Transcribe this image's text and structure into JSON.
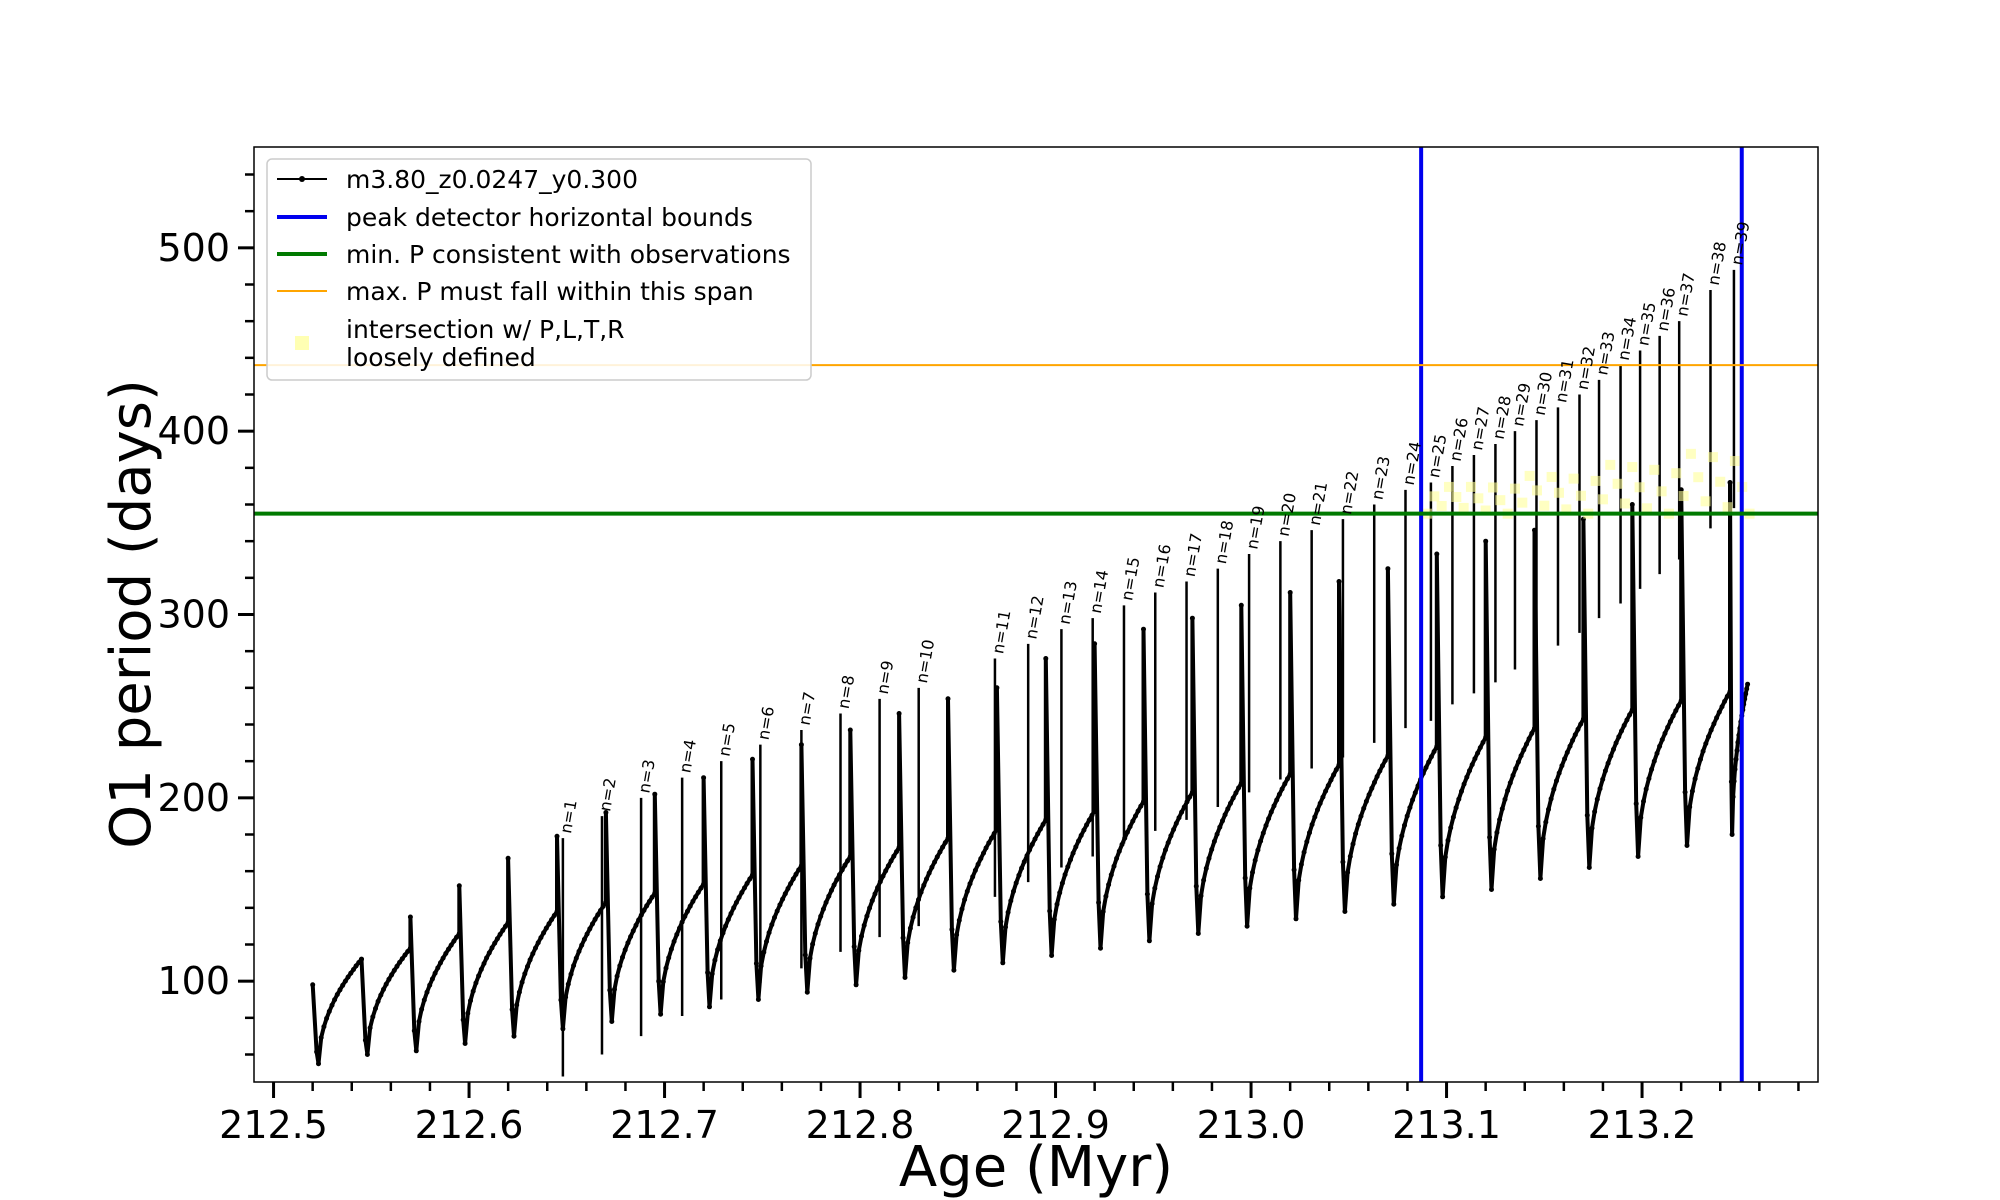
{
  "chart_data": {
    "type": "line",
    "xlabel": "Age (Myr)",
    "ylabel": "O1 period (days)",
    "xlim": [
      212.49,
      213.29
    ],
    "ylim": [
      45,
      555
    ],
    "x_major_ticks": [
      212.5,
      212.6,
      212.7,
      212.8,
      212.9,
      213.0,
      213.1,
      213.2
    ],
    "x_tick_labels": [
      "212.5",
      "212.6",
      "212.7",
      "212.8",
      "212.9",
      "213.0",
      "213.1",
      "213.2"
    ],
    "y_major_ticks": [
      100,
      200,
      300,
      400,
      500
    ],
    "y_tick_labels": [
      "100",
      "200",
      "300",
      "400",
      "500"
    ],
    "grid": false,
    "legend_position": "upper-left",
    "series": [
      {
        "name": "m3.80_z0.0247_y0.300",
        "color": "#000000",
        "style": "line-with-point-markers",
        "description": "pulsation cycles: each cycle starts at a peak, drops to a minimum, then recovers along a concave curve",
        "cycle_start_age": [
          212.52,
          212.545,
          212.57,
          212.595,
          212.62,
          212.645,
          212.67,
          212.695,
          212.72,
          212.745,
          212.77,
          212.795,
          212.82,
          212.845,
          212.87,
          212.895,
          212.92,
          212.945,
          212.97,
          212.995,
          213.02,
          213.045,
          213.07,
          213.095,
          213.12,
          213.145,
          213.17,
          213.195,
          213.22,
          213.245
        ],
        "cycles": {
          "peak_start": [
            98,
            112,
            135,
            152,
            167,
            179,
            192,
            202,
            211,
            221,
            229,
            237,
            246,
            254,
            260,
            276,
            284,
            292,
            298,
            305,
            312,
            318,
            325,
            333,
            340,
            346,
            352,
            360,
            368,
            372
          ],
          "minimum": [
            55,
            60,
            62,
            66,
            70,
            74,
            78,
            82,
            86,
            90,
            94,
            98,
            102,
            106,
            110,
            114,
            118,
            122,
            126,
            130,
            134,
            138,
            142,
            146,
            150,
            156,
            162,
            168,
            174,
            180
          ],
          "plateau": [
            112,
            118,
            126,
            132,
            138,
            143,
            148,
            153,
            158,
            163,
            168,
            173,
            178,
            183,
            188,
            193,
            198,
            203,
            208,
            213,
            218,
            223,
            228,
            233,
            238,
            243,
            248,
            253,
            258,
            262
          ]
        }
      },
      {
        "name": "peak detector horizontal bounds",
        "color": "#0000ee",
        "x_values": [
          213.087,
          213.251
        ]
      },
      {
        "name": "min. P consistent with observations",
        "color": "#007a00",
        "y_value": 355
      },
      {
        "name": "max. P must fall within this span",
        "color": "#ffa500",
        "y_value": 436
      },
      {
        "name": "intersection w/ P,L,T,R\nloosely defined",
        "color": "#ffff99",
        "style": "scatter",
        "age_range": [
          213.09,
          213.255
        ],
        "period_range": [
          355,
          392
        ]
      }
    ],
    "peak_annotations": [
      {
        "label": "n=1",
        "x": 212.648,
        "y": 178
      },
      {
        "label": "n=2",
        "x": 212.668,
        "y": 190
      },
      {
        "label": "n=3",
        "x": 212.688,
        "y": 200
      },
      {
        "label": "n=4",
        "x": 212.709,
        "y": 211
      },
      {
        "label": "n=5",
        "x": 212.729,
        "y": 220
      },
      {
        "label": "n=6",
        "x": 212.749,
        "y": 229
      },
      {
        "label": "n=7",
        "x": 212.77,
        "y": 237
      },
      {
        "label": "n=8",
        "x": 212.79,
        "y": 246
      },
      {
        "label": "n=9",
        "x": 212.81,
        "y": 254
      },
      {
        "label": "n=10",
        "x": 212.83,
        "y": 260
      },
      {
        "label": "n=11",
        "x": 212.869,
        "y": 276
      },
      {
        "label": "n=12",
        "x": 212.886,
        "y": 284
      },
      {
        "label": "n=13",
        "x": 212.903,
        "y": 292
      },
      {
        "label": "n=14",
        "x": 212.919,
        "y": 298
      },
      {
        "label": "n=15",
        "x": 212.935,
        "y": 305
      },
      {
        "label": "n=16",
        "x": 212.951,
        "y": 312
      },
      {
        "label": "n=17",
        "x": 212.967,
        "y": 318
      },
      {
        "label": "n=18",
        "x": 212.983,
        "y": 325
      },
      {
        "label": "n=19",
        "x": 212.999,
        "y": 333
      },
      {
        "label": "n=20",
        "x": 213.015,
        "y": 340
      },
      {
        "label": "n=21",
        "x": 213.031,
        "y": 346
      },
      {
        "label": "n=22",
        "x": 213.047,
        "y": 352
      },
      {
        "label": "n=23",
        "x": 213.063,
        "y": 360
      },
      {
        "label": "n=24",
        "x": 213.079,
        "y": 368
      },
      {
        "label": "n=25",
        "x": 213.092,
        "y": 372
      },
      {
        "label": "n=26",
        "x": 213.103,
        "y": 381
      },
      {
        "label": "n=27",
        "x": 213.114,
        "y": 387
      },
      {
        "label": "n=28",
        "x": 213.125,
        "y": 393
      },
      {
        "label": "n=29",
        "x": 213.135,
        "y": 400
      },
      {
        "label": "n=30",
        "x": 213.146,
        "y": 406
      },
      {
        "label": "n=31",
        "x": 213.157,
        "y": 413
      },
      {
        "label": "n=32",
        "x": 213.168,
        "y": 420
      },
      {
        "label": "n=33",
        "x": 213.178,
        "y": 428
      },
      {
        "label": "n=34",
        "x": 213.189,
        "y": 436
      },
      {
        "label": "n=35",
        "x": 213.199,
        "y": 444
      },
      {
        "label": "n=36",
        "x": 213.209,
        "y": 452
      },
      {
        "label": "n=37",
        "x": 213.219,
        "y": 460
      },
      {
        "label": "n=38",
        "x": 213.235,
        "y": 477
      },
      {
        "label": "n=39",
        "x": 213.247,
        "y": 488
      }
    ]
  }
}
